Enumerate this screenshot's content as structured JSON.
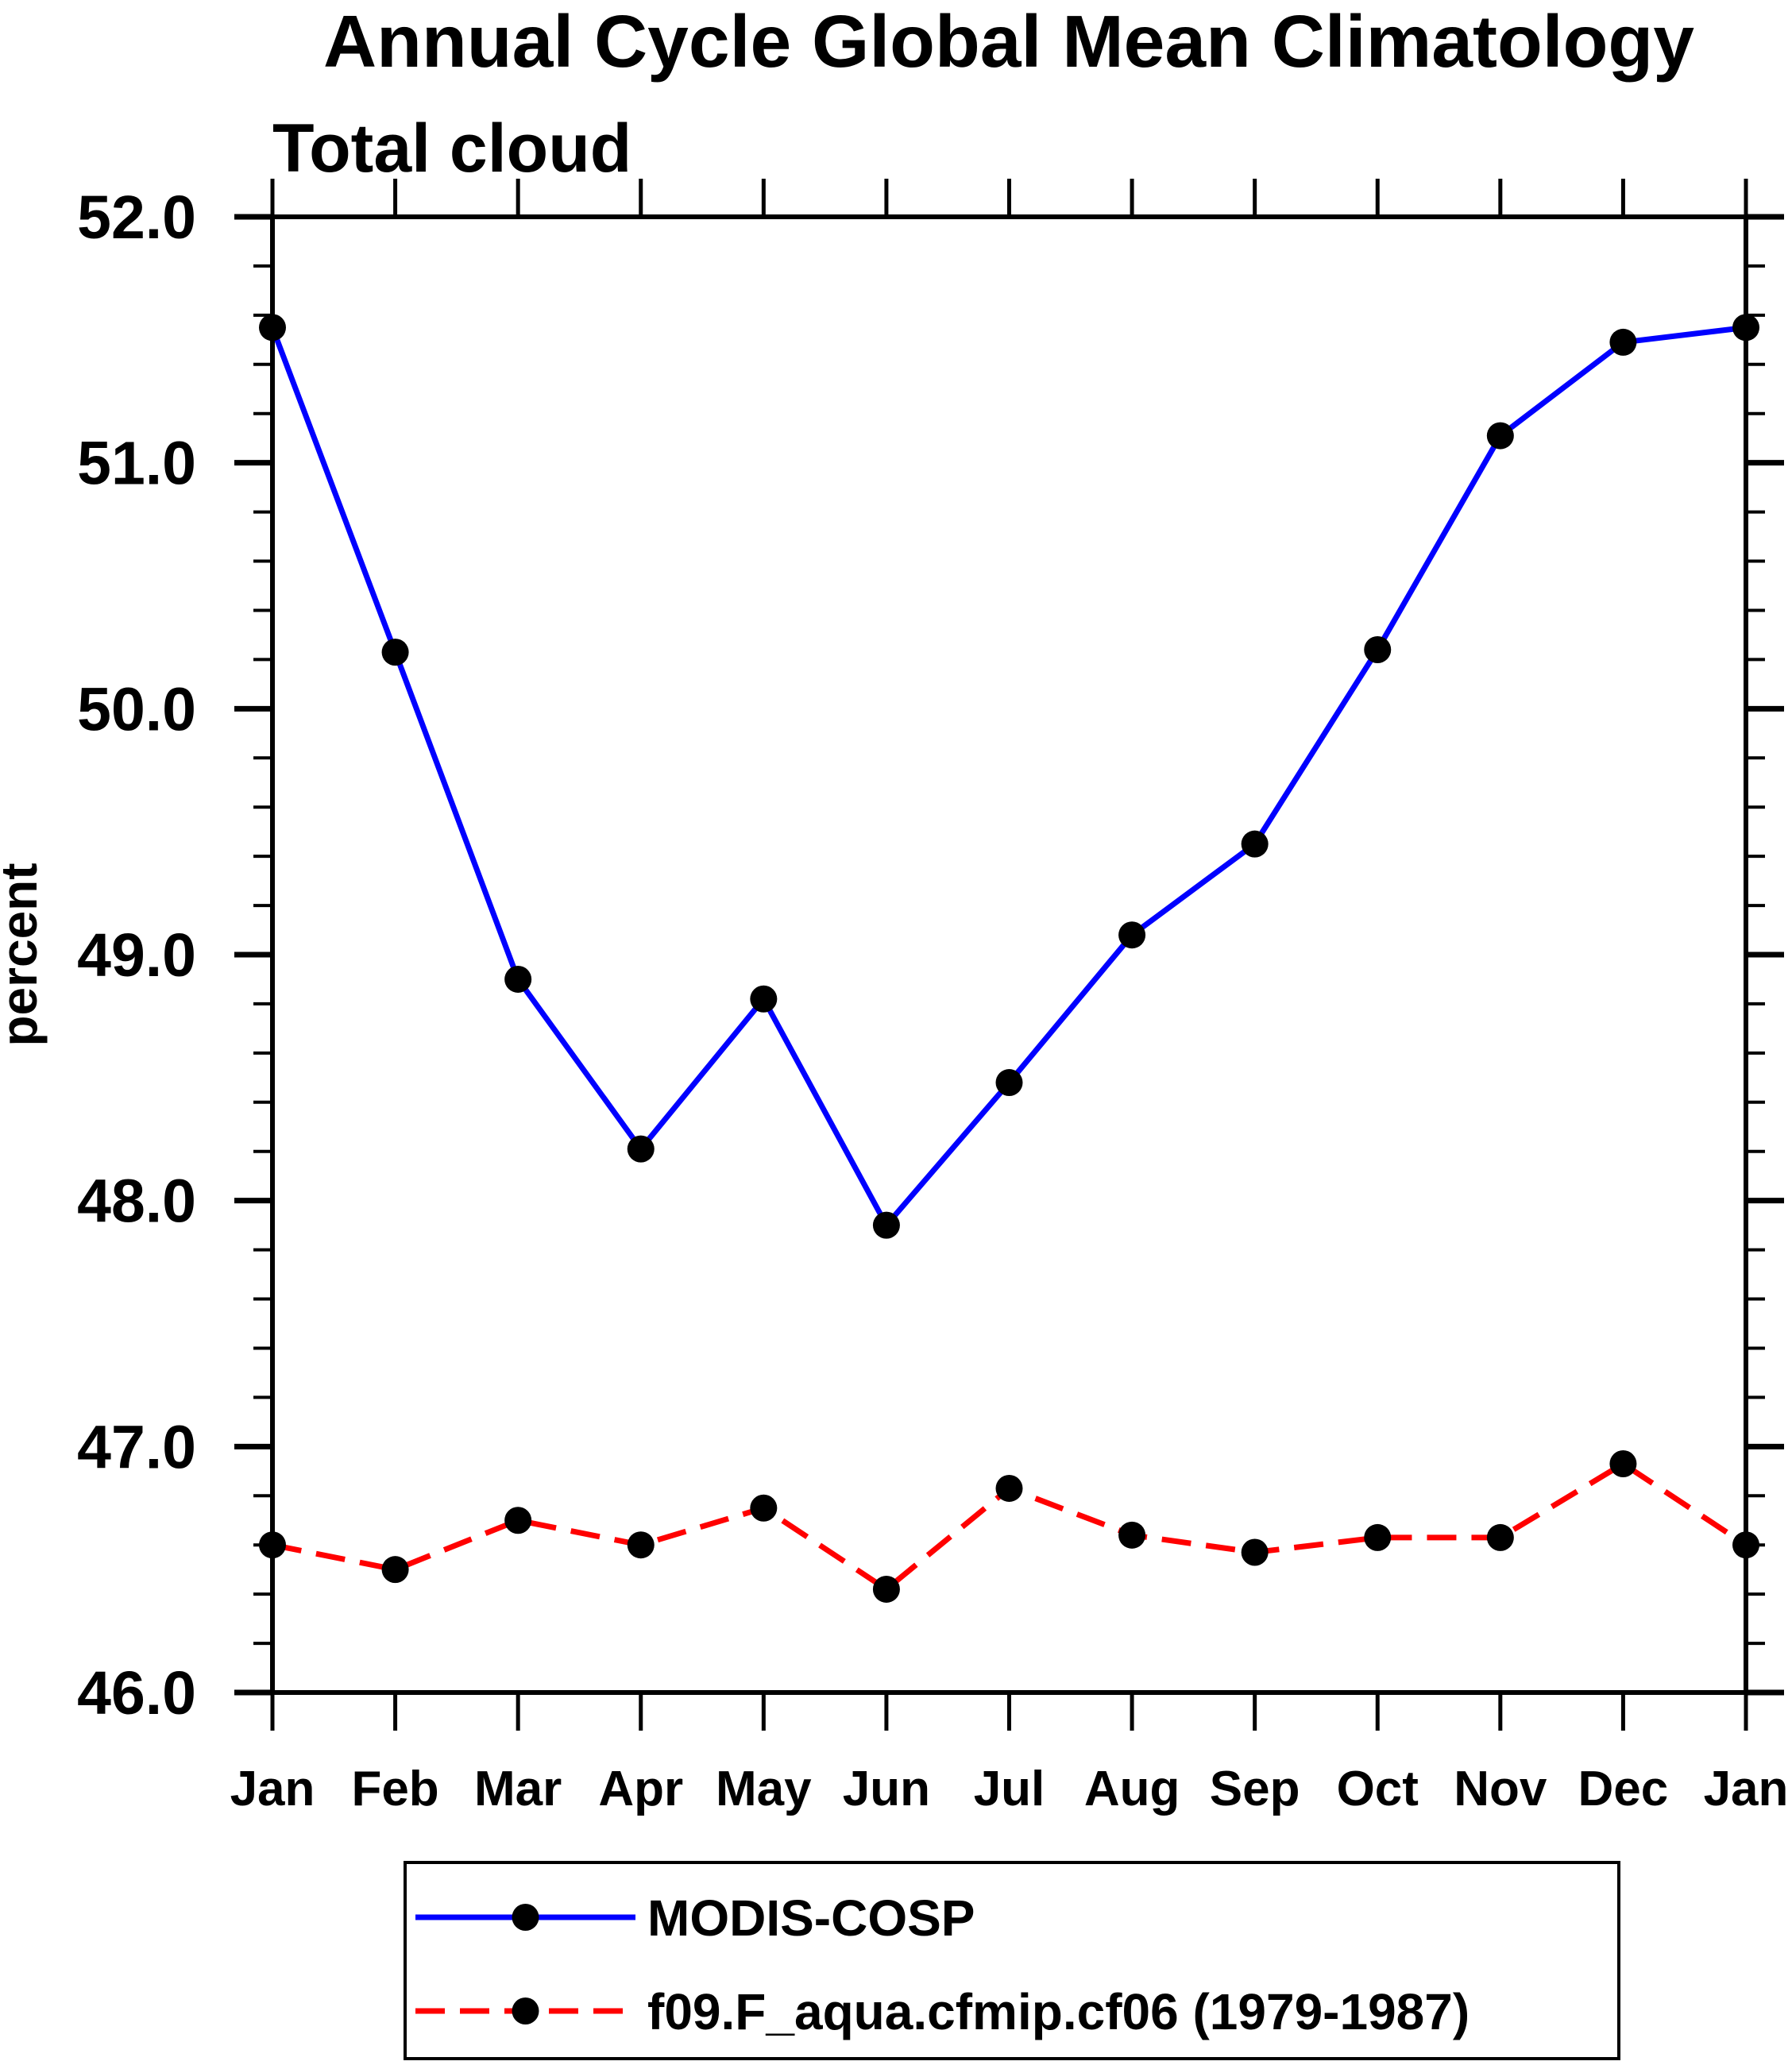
{
  "chart_data": {
    "type": "line",
    "title": "Annual Cycle Global Mean Climatology",
    "subtitle": "Total cloud",
    "ylabel": "percent",
    "x_categories": [
      "Jan",
      "Feb",
      "Mar",
      "Apr",
      "May",
      "Jun",
      "Jul",
      "Aug",
      "Sep",
      "Oct",
      "Nov",
      "Dec",
      "Jan"
    ],
    "ylim": [
      46.0,
      52.0
    ],
    "y_major_step": 1.0,
    "y_minor_step": 0.2,
    "y_tick_labels": [
      "52.0",
      "51.0",
      "50.0",
      "49.0",
      "48.0",
      "47.0",
      "46.0"
    ],
    "grid": false,
    "frame_color": "#000000",
    "background_color": "#ffffff",
    "legend_position": "bottom",
    "series": [
      {
        "name": "MODIS-COSP",
        "color": "#0000ff",
        "line_style": "solid",
        "marker": "filled-circle",
        "marker_color": "#000000",
        "values": [
          51.55,
          50.23,
          48.9,
          48.21,
          48.82,
          47.9,
          48.48,
          49.08,
          49.45,
          50.24,
          51.11,
          51.49,
          51.55
        ]
      },
      {
        "name": "f09.F_aqua.cfmip.cf06 (1979-1987)",
        "color": "#ff0000",
        "line_style": "dashed",
        "marker": "filled-circle",
        "marker_color": "#000000",
        "values": [
          46.6,
          46.5,
          46.7,
          46.6,
          46.75,
          46.42,
          46.83,
          46.64,
          46.57,
          46.63,
          46.63,
          46.93,
          46.6
        ]
      }
    ]
  }
}
